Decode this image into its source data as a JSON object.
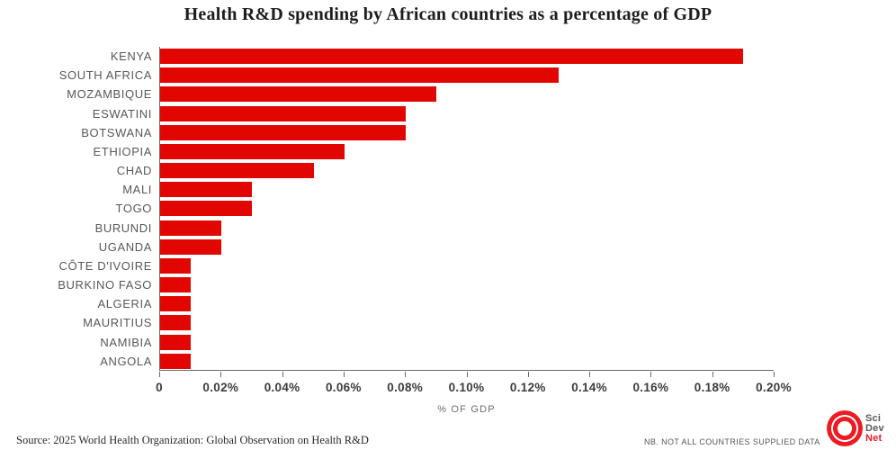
{
  "title": "Health R&D spending by African countries as a percentage of GDP",
  "chart_data": {
    "type": "bar",
    "orientation": "horizontal",
    "title": "Health R&D spending by African countries as a percentage of GDP",
    "categories": [
      "KENYA",
      "SOUTH AFRICA",
      "MOZAMBIQUE",
      "ESWATINI",
      "BOTSWANA",
      "ETHIOPIA",
      "CHAD",
      "MALI",
      "TOGO",
      "BURUNDI",
      "UGANDA",
      "CÔTE D'IVOIRE",
      "BURKINO FASO",
      "ALGERIA",
      "MAURITIUS",
      "NAMIBIA",
      "ANGOLA"
    ],
    "values": [
      0.19,
      0.13,
      0.09,
      0.08,
      0.08,
      0.06,
      0.05,
      0.03,
      0.03,
      0.02,
      0.02,
      0.01,
      0.01,
      0.01,
      0.01,
      0.01,
      0.01
    ],
    "xlabel": "% OF GDP",
    "ylabel": "",
    "xlim": [
      0,
      0.2
    ],
    "x_ticks": [
      0,
      0.02,
      0.04,
      0.06,
      0.08,
      0.1,
      0.12,
      0.14,
      0.16,
      0.18,
      0.2
    ],
    "x_tick_labels": [
      "0",
      "0.02%",
      "0.04%",
      "0.06%",
      "0.08%",
      "0.10%",
      "0.12%",
      "0.14%",
      "0.16%",
      "0.18%",
      "0.20%"
    ],
    "grid": false,
    "legend": false,
    "bar_color": "#e10600"
  },
  "footer": {
    "source": "Source: 2025 World Health Organization: Global Observation on Health R&D",
    "note": "NB. NOT ALL COUNTRIES SUPPLIED DATA"
  },
  "logo": {
    "line1": "Sci",
    "line2": "Dev",
    "line3": "Net"
  },
  "colors": {
    "bar_red": "#e10600",
    "brand_red": "#ed1c24",
    "label_gray": "#58585b",
    "axis_gray": "#6b6b6b"
  }
}
